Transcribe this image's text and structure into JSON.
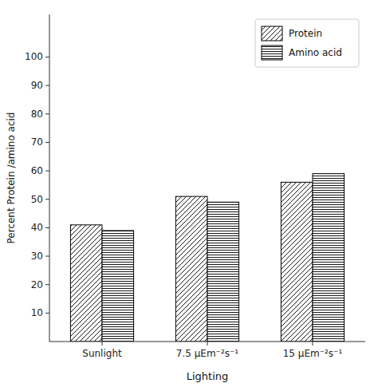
{
  "chart_data": {
    "type": "bar",
    "categories": [
      "Sunlight",
      "7.5 μEm⁻²s⁻¹",
      "15 μEm⁻²s⁻¹"
    ],
    "series": [
      {
        "name": "Protein",
        "color": "#000000",
        "values": [
          41,
          51,
          56
        ]
      },
      {
        "name": "Amino acid",
        "color": "#000000",
        "values": [
          39,
          49,
          59
        ]
      }
    ],
    "xlabel": "Lighting",
    "ylabel": "Percent Protein /amino acid",
    "ylim": [
      0,
      115
    ],
    "yticks": [
      10,
      20,
      30,
      40,
      50,
      60,
      70,
      80,
      90,
      100
    ],
    "grid": false,
    "legend": "upper right"
  }
}
